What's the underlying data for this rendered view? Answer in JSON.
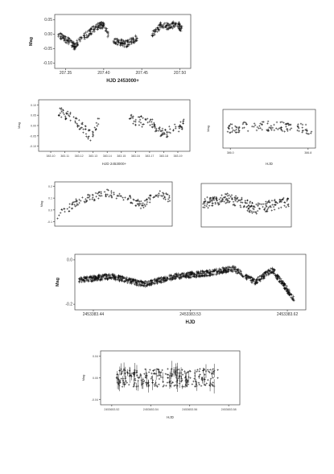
{
  "chart_data": [
    {
      "type": "scatter",
      "xlabel": "HJD 2453000+",
      "ylabel": "Mag",
      "x_ticks": [
        "207.35",
        "207.40",
        "207.45",
        "207.50"
      ],
      "y_ticks": [
        "0.05",
        "0.00",
        "-0.05",
        "-0.10"
      ],
      "xlim": [
        207.33,
        207.52
      ],
      "ylim": [
        0.07,
        -0.14
      ],
      "segments": [
        {
          "x_start": 207.335,
          "x_end": 207.368,
          "shape": [
            [
              0,
              -0.01
            ],
            [
              0.4,
              -0.03
            ],
            [
              0.7,
              -0.055
            ],
            [
              1,
              -0.02
            ]
          ]
        },
        {
          "x_start": 207.37,
          "x_end": 207.405,
          "shape": [
            [
              0,
              -0.02
            ],
            [
              0.5,
              0.02
            ],
            [
              0.8,
              0.03
            ],
            [
              1,
              -0.01
            ]
          ]
        },
        {
          "x_start": 207.412,
          "x_end": 207.446,
          "shape": [
            [
              0,
              -0.03
            ],
            [
              0.5,
              -0.045
            ],
            [
              1,
              -0.02
            ]
          ]
        },
        {
          "x_start": 207.466,
          "x_end": 207.508,
          "shape": [
            [
              0,
              -0.01
            ],
            [
              0.3,
              0.03
            ],
            [
              0.6,
              0.02
            ],
            [
              0.8,
              0.04
            ],
            [
              1,
              0.01
            ]
          ]
        }
      ]
    },
    {
      "type": "scatter",
      "xlabel": "HJD 2453000+",
      "ylabel": "Mag",
      "x_ticks": [
        "383.10",
        "383.11",
        "383.12",
        "383.13",
        "383.14",
        "383.15",
        "383.16",
        "383.17",
        "383.18",
        "383.19"
      ],
      "y_ticks": [
        "0.10",
        "0.05",
        "0.00",
        "-0.05",
        "-0.10"
      ],
      "xlim": [
        383.095,
        383.195
      ],
      "ylim": [
        0.12,
        -0.12
      ],
      "segments": [
        {
          "x_start": 383.108,
          "x_end": 383.135,
          "shape": [
            [
              0,
              0.07
            ],
            [
              0.4,
              0.03
            ],
            [
              0.8,
              -0.05
            ],
            [
              1,
              0.02
            ]
          ]
        },
        {
          "x_start": 383.155,
          "x_end": 383.192,
          "shape": [
            [
              0,
              0.03
            ],
            [
              0.4,
              0.01
            ],
            [
              0.6,
              -0.04
            ],
            [
              1,
              0.01
            ]
          ]
        }
      ]
    },
    {
      "type": "scatter",
      "xlabel": "HJD",
      "ylabel": "Mag",
      "x_ticks": [
        "386.0",
        "386.8"
      ],
      "y_ticks": [],
      "xlim": [
        385.8,
        387.0
      ],
      "ylim": [
        0.12,
        -0.12
      ],
      "segments": [
        {
          "x_start": 385.85,
          "x_end": 386.7,
          "shape": [
            [
              0,
              0.0
            ],
            [
              0.5,
              0.02
            ],
            [
              1,
              0.01
            ]
          ]
        },
        {
          "x_start": 386.75,
          "x_end": 386.95,
          "shape": [
            [
              0,
              0.01
            ],
            [
              1,
              -0.01
            ]
          ]
        }
      ]
    },
    {
      "type": "scatter",
      "xlabel": "",
      "ylabel": "Mag",
      "x_ticks": [],
      "y_ticks": [
        "0.2",
        "0.1",
        "0.0",
        "-0.1"
      ],
      "xlim": [
        0,
        1
      ],
      "ylim": [
        0.25,
        -0.15
      ],
      "segments": [
        {
          "x_start": 0.02,
          "x_end": 0.98,
          "shape": [
            [
              0,
              -0.05
            ],
            [
              0.2,
              0.08
            ],
            [
              0.45,
              0.15
            ],
            [
              0.6,
              0.12
            ],
            [
              0.75,
              0.04
            ],
            [
              0.9,
              0.15
            ],
            [
              1,
              0.1
            ]
          ]
        }
      ]
    },
    {
      "type": "scatter",
      "xlabel": "",
      "ylabel": "",
      "x_ticks": [],
      "y_ticks": [],
      "xlim": [
        0,
        1
      ],
      "ylim": [
        0.12,
        -0.12
      ],
      "segments": [
        {
          "x_start": 0.02,
          "x_end": 0.98,
          "shape": [
            [
              0,
              0.01
            ],
            [
              0.3,
              0.04
            ],
            [
              0.6,
              -0.02
            ],
            [
              1,
              0.02
            ]
          ]
        }
      ]
    },
    {
      "type": "scatter",
      "xlabel": "HJD",
      "ylabel": "Mag",
      "x_ticks": [
        "2453383.44",
        "2453383.53",
        "2453383.62"
      ],
      "y_ticks": [
        "0.0",
        "-0.2"
      ],
      "xlim": [
        2453383.39,
        2453383.68
      ],
      "ylim": [
        0.2,
        -0.3
      ],
      "segments": [
        {
          "x_start": 2453383.395,
          "x_end": 2453383.665,
          "shape": [
            [
              0,
              -0.03
            ],
            [
              0.15,
              0.0
            ],
            [
              0.3,
              -0.07
            ],
            [
              0.45,
              0.0
            ],
            [
              0.6,
              0.03
            ],
            [
              0.72,
              0.07
            ],
            [
              0.82,
              -0.05
            ],
            [
              0.9,
              0.06
            ],
            [
              1,
              -0.2
            ]
          ]
        }
      ]
    },
    {
      "type": "scatter",
      "xlabel": "HJD",
      "ylabel": "Mag",
      "x_ticks": [
        "2453653.52",
        "2453653.54",
        "2453653.56",
        "2453653.58"
      ],
      "y_ticks": [
        "0.04",
        "0.00",
        "-0.04"
      ],
      "xlim": [
        2453653.515,
        2453653.585
      ],
      "ylim": [
        0.06,
        -0.06
      ],
      "segments": [
        {
          "x_start": 2453653.523,
          "x_end": 2453653.574,
          "shape": [
            [
              0,
              0.0
            ],
            [
              0.5,
              0.0
            ],
            [
              1,
              0.0
            ]
          ]
        }
      ]
    }
  ]
}
